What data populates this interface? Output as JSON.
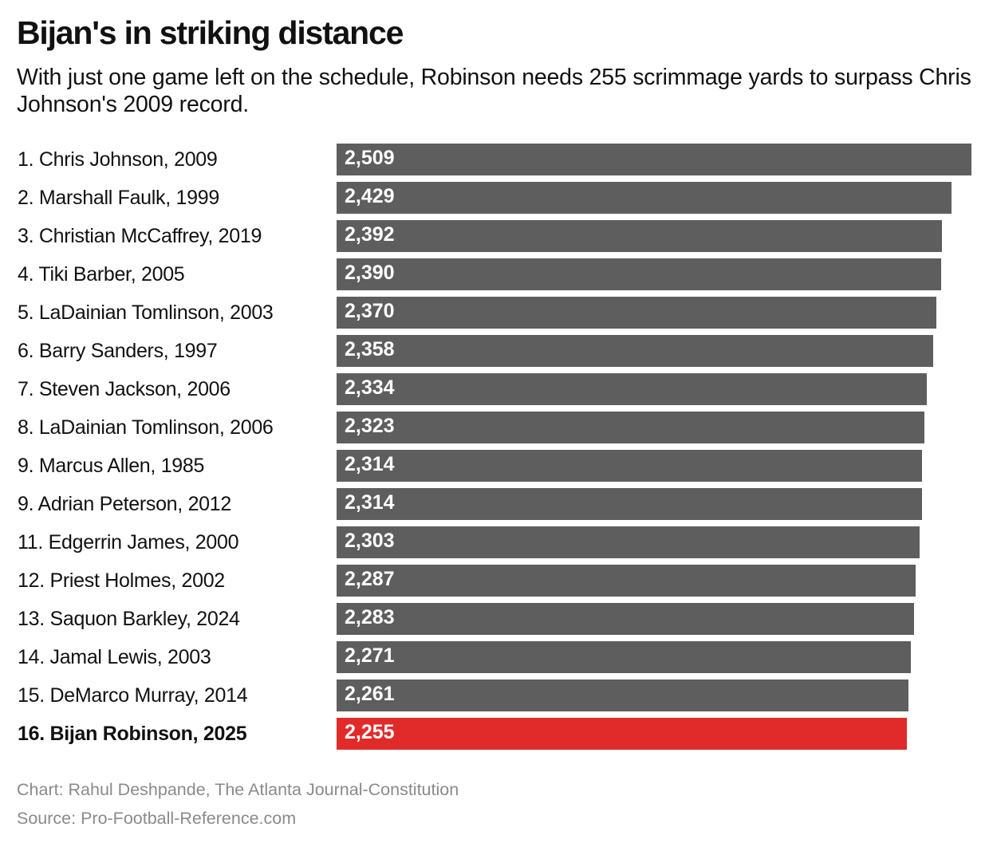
{
  "title": "Bijan's in striking distance",
  "subtitle": "With just one game left on the schedule, Robinson needs 255 scrimmage yards to surpass Chris Johnson's 2009 record.",
  "chart_data": {
    "type": "bar",
    "orientation": "horizontal",
    "categories": [
      "1. Chris Johnson, 2009",
      "2. Marshall Faulk, 1999",
      "3. Christian McCaffrey, 2019",
      "4. Tiki Barber, 2005",
      "5. LaDainian Tomlinson, 2003",
      "6. Barry Sanders, 1997",
      "7. Steven Jackson, 2006",
      "8. LaDainian Tomlinson, 2006",
      "9. Marcus Allen, 1985",
      "9. Adrian Peterson, 2012",
      "11. Edgerrin James, 2000",
      "12. Priest Holmes, 2002",
      "13. Saquon Barkley, 2024",
      "14. Jamal Lewis, 2003",
      "15. DeMarco Murray, 2014",
      "16. Bijan Robinson, 2025"
    ],
    "values": [
      2509,
      2429,
      2392,
      2390,
      2370,
      2358,
      2334,
      2323,
      2314,
      2314,
      2303,
      2287,
      2283,
      2271,
      2261,
      2255
    ],
    "value_labels": [
      "2,509",
      "2,429",
      "2,392",
      "2,390",
      "2,370",
      "2,358",
      "2,334",
      "2,323",
      "2,314",
      "2,314",
      "2,303",
      "2,287",
      "2,283",
      "2,271",
      "2,261",
      "2,255"
    ],
    "highlight_index": 15,
    "xlim": [
      0,
      2509
    ],
    "grid": false,
    "colors": {
      "default": "#5e5e5e",
      "highlight": "#e12b2b"
    }
  },
  "footer": {
    "credit": "Chart: Rahul Deshpande, The Atlanta Journal-Constitution",
    "source": "Source: Pro-Football-Reference.com"
  }
}
